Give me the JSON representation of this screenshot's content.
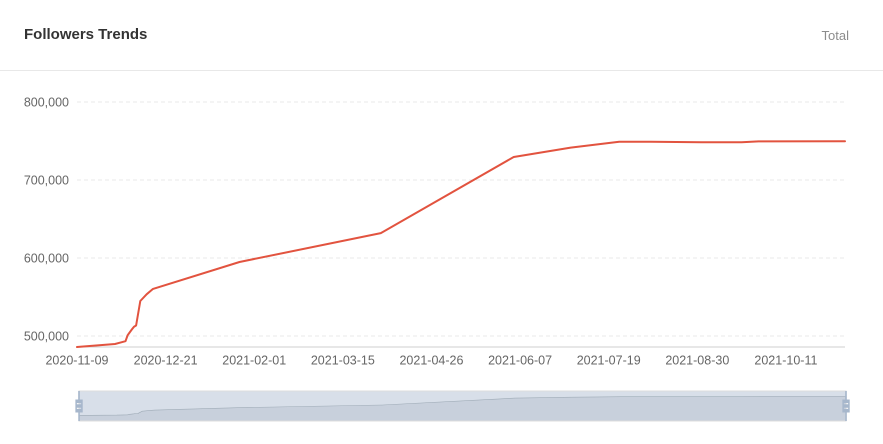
{
  "header": {
    "filter_label": "Total"
  },
  "colors": {
    "line": "#e2533f",
    "slider_filler": "#d8dfe9",
    "slider_handle": "#a7b7cc"
  },
  "data_zoom": {
    "start_percent": 0,
    "end_percent": 100
  },
  "chart_data": {
    "type": "line",
    "title": "Followers Trends",
    "x": [
      "2020-11-09",
      "2020-11-27",
      "2020-11-30",
      "2020-12-02",
      "2020-12-03",
      "2020-12-05",
      "2020-12-06",
      "2020-12-07",
      "2020-12-09",
      "2020-12-12",
      "2020-12-15",
      "2021-01-25",
      "2021-04-02",
      "2021-06-04",
      "2021-07-01",
      "2021-07-24",
      "2021-08-08",
      "2021-09-01",
      "2021-09-20",
      "2021-09-28",
      "2021-11-08"
    ],
    "series": [
      {
        "values": [
          486000,
          489800,
          492000,
          493400,
          501000,
          508500,
          512000,
          513500,
          545000,
          553500,
          560500,
          595000,
          632000,
          729500,
          741500,
          749000,
          749000,
          748500,
          748500,
          749500,
          749800
        ]
      }
    ],
    "xticks": [
      "2020-11-09",
      "2020-12-21",
      "2021-02-01",
      "2021-03-15",
      "2021-04-26",
      "2021-06-07",
      "2021-07-19",
      "2021-08-30",
      "2021-10-11"
    ],
    "yticks": [
      "500,000",
      "600,000",
      "700,000",
      "800,000"
    ],
    "xlim": [
      "2020-11-09",
      "2021-11-08"
    ],
    "ylim": [
      486000,
      800000
    ],
    "grid": true
  }
}
